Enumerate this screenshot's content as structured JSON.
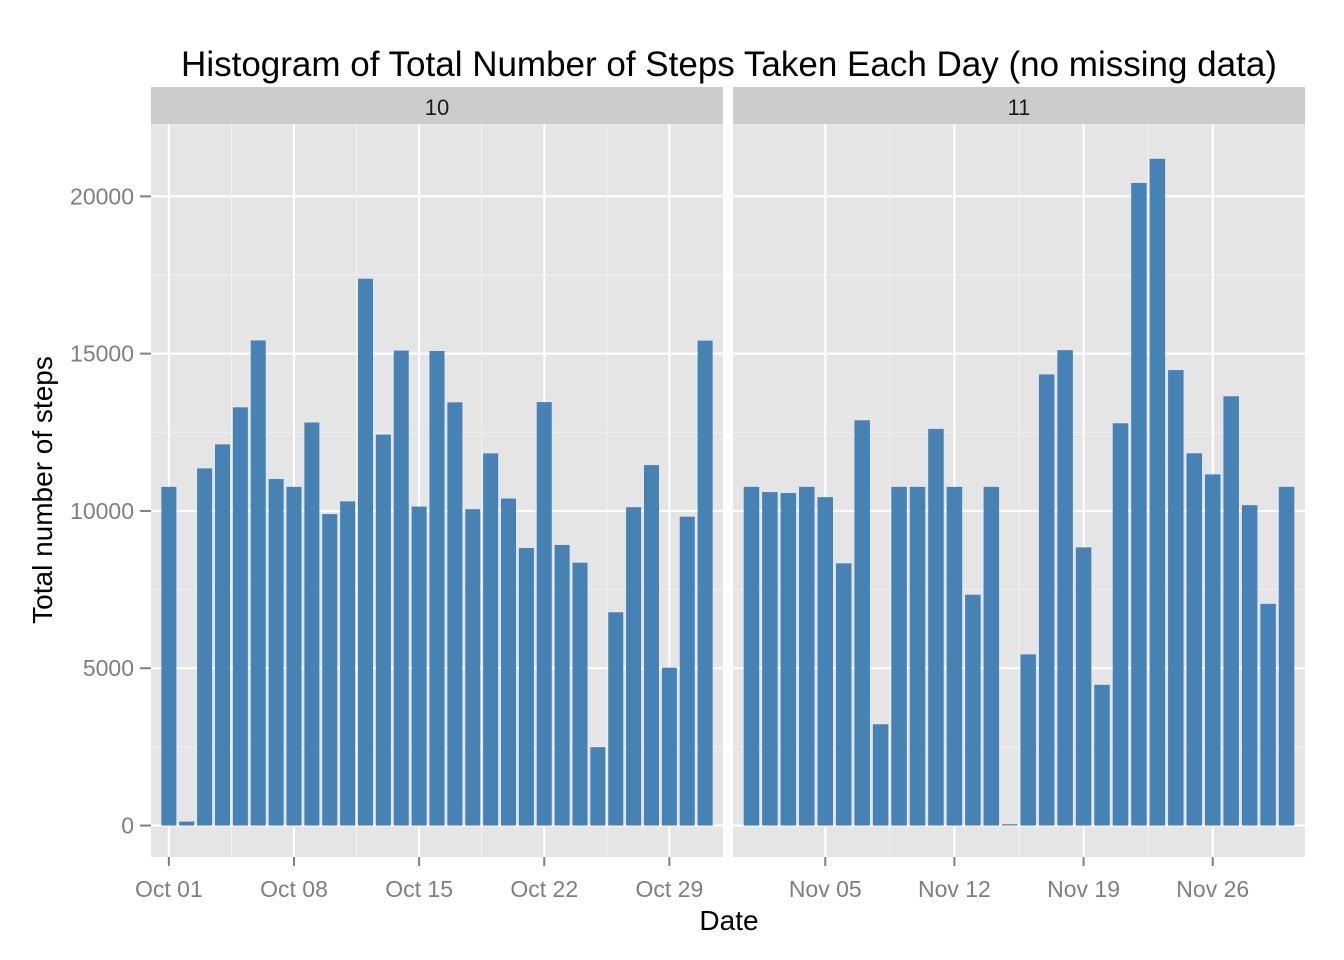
{
  "chart_data": {
    "type": "bar",
    "title": "Histogram of Total Number of Steps Taken Each Day (no missing data)",
    "xlabel": "Date",
    "ylabel": "Total number of steps",
    "ylim": [
      -1000,
      22300
    ],
    "y_ticks": [
      0,
      5000,
      10000,
      15000,
      20000
    ],
    "y_tick_labels": [
      "0",
      "5000",
      "10000",
      "15000",
      "20000"
    ],
    "bar_color": "#4682b4",
    "panel_background": "#e5e5e5",
    "strip_background": "#cccccc",
    "grid": true,
    "facets": [
      {
        "label": "10",
        "x_range": [
          "2012-09-30",
          "2012-11-01"
        ],
        "x_ticks": [
          "2012-10-01",
          "2012-10-08",
          "2012-10-15",
          "2012-10-22",
          "2012-10-29"
        ],
        "x_tick_labels": [
          "Oct 01",
          "Oct 08",
          "Oct 15",
          "Oct 22",
          "Oct 29"
        ],
        "dates": [
          "2012-10-01",
          "2012-10-02",
          "2012-10-03",
          "2012-10-04",
          "2012-10-05",
          "2012-10-06",
          "2012-10-07",
          "2012-10-08",
          "2012-10-09",
          "2012-10-10",
          "2012-10-11",
          "2012-10-12",
          "2012-10-13",
          "2012-10-14",
          "2012-10-15",
          "2012-10-16",
          "2012-10-17",
          "2012-10-18",
          "2012-10-19",
          "2012-10-20",
          "2012-10-21",
          "2012-10-22",
          "2012-10-23",
          "2012-10-24",
          "2012-10-25",
          "2012-10-26",
          "2012-10-27",
          "2012-10-28",
          "2012-10-29",
          "2012-10-30",
          "2012-10-31"
        ],
        "values": [
          10766,
          126,
          11352,
          12116,
          13294,
          15420,
          11015,
          10766,
          12811,
          9900,
          10304,
          17382,
          12426,
          15098,
          10139,
          15084,
          13452,
          10056,
          11829,
          10395,
          8821,
          13460,
          8918,
          8355,
          2492,
          6778,
          10119,
          11458,
          5018,
          9819,
          15414
        ]
      },
      {
        "label": "11",
        "x_range": [
          "2012-10-31",
          "2012-12-01"
        ],
        "x_ticks": [
          "2012-11-05",
          "2012-11-12",
          "2012-11-19",
          "2012-11-26"
        ],
        "x_tick_labels": [
          "Nov 05",
          "Nov 12",
          "Nov 19",
          "Nov 26"
        ],
        "dates": [
          "2012-11-01",
          "2012-11-02",
          "2012-11-03",
          "2012-11-04",
          "2012-11-05",
          "2012-11-06",
          "2012-11-07",
          "2012-11-08",
          "2012-11-09",
          "2012-11-10",
          "2012-11-11",
          "2012-11-12",
          "2012-11-13",
          "2012-11-14",
          "2012-11-15",
          "2012-11-16",
          "2012-11-17",
          "2012-11-18",
          "2012-11-19",
          "2012-11-20",
          "2012-11-21",
          "2012-11-22",
          "2012-11-23",
          "2012-11-24",
          "2012-11-25",
          "2012-11-26",
          "2012-11-27",
          "2012-11-28",
          "2012-11-29",
          "2012-11-30"
        ],
        "values": [
          10766,
          10600,
          10571,
          10766,
          10439,
          8334,
          12883,
          3219,
          10766,
          10766,
          12608,
          10765,
          7336,
          10766,
          41,
          5441,
          14339,
          15110,
          8841,
          4472,
          12787,
          20427,
          21194,
          14478,
          11834,
          11162,
          13646,
          10183,
          7047,
          10766
        ]
      }
    ]
  }
}
